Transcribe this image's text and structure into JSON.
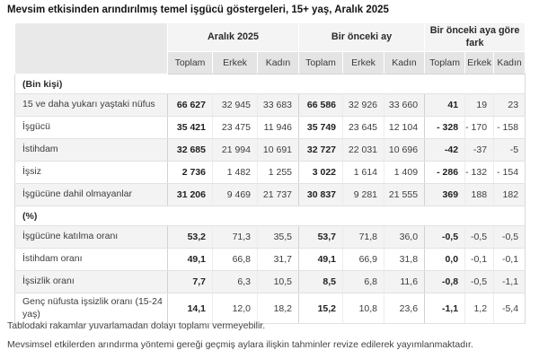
{
  "title": "Mevsim etkisinden arındırılmış temel işgücü göstergeleri, 15+ yaş, Aralık 2025",
  "chart_data": {
    "type": "table",
    "title": "Mevsim etkisinden arındırılmış temel işgücü göstergeleri, 15+ yaş, Aralık 2025",
    "column_groups": [
      "Aralık 2025",
      "Bir önceki ay",
      "Bir önceki aya göre fark"
    ],
    "sub_columns": [
      "Toplam",
      "Erkek",
      "Kadın"
    ],
    "sections": [
      {
        "label": "(Bin kişi)",
        "rows": [
          {
            "label": "15 ve daha yukarı yaştaki nüfus",
            "values": [
              "66 627",
              "32 945",
              "33 683",
              "66 586",
              "32 926",
              "33 660",
              "41",
              "19",
              "23"
            ]
          },
          {
            "label": "İşgücü",
            "values": [
              "35 421",
              "23 475",
              "11 946",
              "35 749",
              "23 645",
              "12 104",
              "- 328",
              "- 170",
              "- 158"
            ]
          },
          {
            "label": "İstihdam",
            "values": [
              "32 685",
              "21 994",
              "10 691",
              "32 727",
              "22 031",
              "10 696",
              "-42",
              "-37",
              "-5"
            ]
          },
          {
            "label": "İşsiz",
            "values": [
              "2 736",
              "1 482",
              "1 255",
              "3 022",
              "1 614",
              "1 409",
              "- 286",
              "- 132",
              "- 154"
            ]
          },
          {
            "label": "İşgücüne dahil olmayanlar",
            "values": [
              "31 206",
              "9 469",
              "21 737",
              "30 837",
              "9 281",
              "21 555",
              "369",
              "188",
              "182"
            ]
          }
        ]
      },
      {
        "label": "(%)",
        "rows": [
          {
            "label": "İşgücüne katılma oranı",
            "values": [
              "53,2",
              "71,3",
              "35,5",
              "53,7",
              "71,8",
              "36,0",
              "-0,5",
              "-0,5",
              "-0,5"
            ]
          },
          {
            "label": "İstihdam oranı",
            "values": [
              "49,1",
              "66,8",
              "31,7",
              "49,1",
              "66,9",
              "31,8",
              "0,0",
              "-0,1",
              "-0,1"
            ]
          },
          {
            "label": "İşsizlik oranı",
            "values": [
              "7,7",
              "6,3",
              "10,5",
              "8,5",
              "6,8",
              "11,6",
              "-0,8",
              "-0,5",
              "-1,1"
            ]
          },
          {
            "label": "Genç nüfusta işsizlik oranı (15-24 yaş)",
            "values": [
              "14,1",
              "12,0",
              "18,2",
              "15,2",
              "10,8",
              "23,6",
              "-1,1",
              "1,2",
              "-5,4"
            ]
          }
        ]
      }
    ],
    "footnotes": [
      "Tablodaki rakamlar yuvarlamadan dolayı toplamı vermeyebilir.",
      "Mevsimsel etkilerden arındırma yöntemi gereği geçmiş aylara ilişkin tahminler revize edilerek yayımlanmaktadır."
    ],
    "layout_hints": {
      "bold_columns": [
        "Toplam"
      ],
      "striped_rows": "odd rows of each section"
    }
  },
  "colors": {
    "corner_bg": "#e9e9e9",
    "group_header_bg": "#f4f4f4",
    "sub_header_bg": "#e4e4e4",
    "stripe_bg": "#f3f3f3",
    "border": "#d9d9d9",
    "text": "#3d3d3d"
  }
}
